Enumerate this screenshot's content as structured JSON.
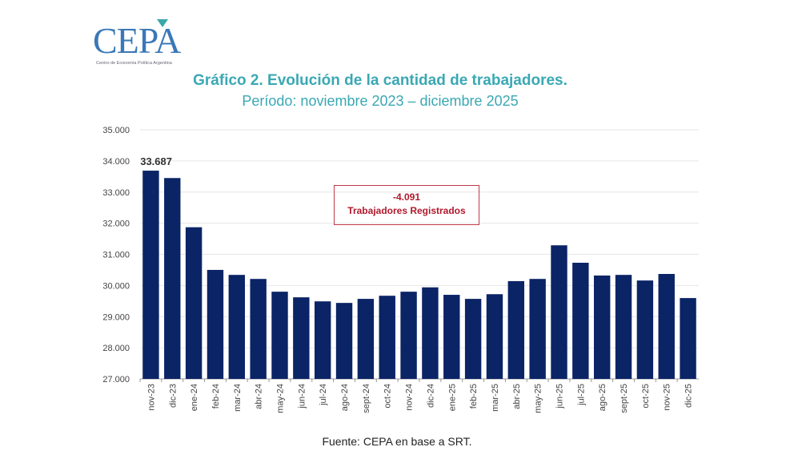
{
  "logo": {
    "text": "CEPA",
    "subtitle": "Centro de Economía Política Argentina"
  },
  "chart_data": {
    "type": "bar",
    "title": "Gráfico 2. Evolución de la cantidad de trabajadores.",
    "subtitle": "Período: noviembre 2023 – diciembre 2025",
    "categories": [
      "nov-23",
      "dic-23",
      "ene-24",
      "feb-24",
      "mar-24",
      "abr-24",
      "may-24",
      "jun-24",
      "jul-24",
      "ago-24",
      "sept-24",
      "oct-24",
      "nov-24",
      "dic-24",
      "ene-25",
      "feb-25",
      "mar-25",
      "abr-25",
      "may-25",
      "jun-25",
      "jul-25",
      "ago-25",
      "sept-25",
      "oct-25",
      "nov-25",
      "dic-25"
    ],
    "values": [
      33687,
      33450,
      31870,
      30500,
      30340,
      30210,
      29800,
      29620,
      29490,
      29440,
      29570,
      29670,
      29800,
      29940,
      29700,
      29570,
      29720,
      30140,
      30210,
      31290,
      30730,
      30320,
      30340,
      30160,
      30370,
      29596
    ],
    "data_labels": {
      "0": "33.687"
    },
    "ylim": [
      27000,
      35000
    ],
    "yticks": [
      "27.000",
      "28.000",
      "29.000",
      "30.000",
      "31.000",
      "32.000",
      "33.000",
      "34.000",
      "35.000"
    ],
    "grid": true,
    "color": "#0b2466",
    "xlabel": "",
    "ylabel": "",
    "annotation": {
      "value": "-4.091",
      "label": "Trabajadores Registrados",
      "color": "#b0192c"
    }
  },
  "source": "Fuente: CEPA en base a SRT."
}
